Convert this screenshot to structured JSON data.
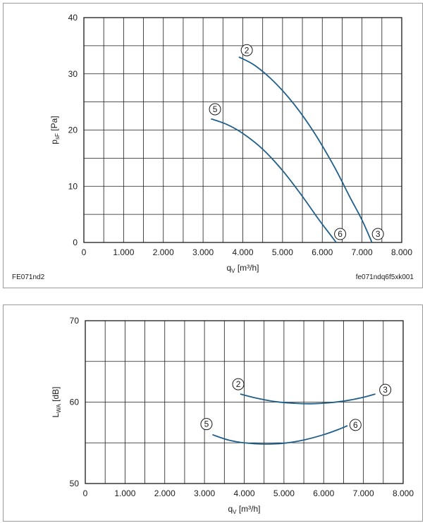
{
  "colors": {
    "curve": "#1f5f8b",
    "grid": "#1a1a1a",
    "panel_border": "#9a9a9a"
  },
  "chart_data": [
    {
      "type": "line",
      "title": "",
      "xlabel": {
        "main": "q",
        "sub": "V",
        "unit": "[m³/h]"
      },
      "ylabel": {
        "main": "p",
        "sub": "sF",
        "unit": "[Pa]"
      },
      "xlim": [
        0,
        8000
      ],
      "ylim": [
        0,
        40
      ],
      "x_ticks": [
        0,
        1000,
        2000,
        3000,
        4000,
        5000,
        6000,
        7000,
        8000
      ],
      "x_tick_labels": [
        "0",
        "1.000",
        "2.000",
        "3.000",
        "4.000",
        "5.000",
        "6.000",
        "7.000",
        "8.000"
      ],
      "y_ticks": [
        0,
        10,
        20,
        30,
        40
      ],
      "y_tick_labels": [
        "0",
        "10",
        "20",
        "30",
        "40"
      ],
      "grid": true,
      "x_grid_step": 500,
      "y_grid_step": 5,
      "series": [
        {
          "name": "2-3",
          "x": [
            3900,
            4300,
            4800,
            5300,
            5800,
            6300,
            6700,
            7000,
            7250
          ],
          "y": [
            33,
            31.5,
            28.5,
            24.5,
            19.5,
            13.5,
            8,
            4,
            0
          ]
        },
        {
          "name": "5-6",
          "x": [
            3200,
            3600,
            4000,
            4500,
            5000,
            5500,
            5900,
            6200,
            6350
          ],
          "y": [
            22,
            21,
            19.4,
            16.6,
            12.8,
            8.2,
            4.2,
            1.4,
            0
          ]
        }
      ],
      "markers": [
        {
          "label": "2",
          "x": 4100,
          "y": 34.2
        },
        {
          "label": "5",
          "x": 3300,
          "y": 23.7
        },
        {
          "label": "6",
          "x": 6450,
          "y": 1.5
        },
        {
          "label": "3",
          "x": 7400,
          "y": 1.5
        }
      ],
      "codes": {
        "left": "FE071nd2",
        "right": "fe071ndq6f5xk001"
      }
    },
    {
      "type": "line",
      "title": "",
      "xlabel": {
        "main": "q",
        "sub": "V",
        "unit": "[m³/h]"
      },
      "ylabel": {
        "main": "L",
        "sub": "WA",
        "unit": "[dB]"
      },
      "xlim": [
        0,
        8000
      ],
      "ylim": [
        50,
        70
      ],
      "x_ticks": [
        0,
        1000,
        2000,
        3000,
        4000,
        5000,
        6000,
        7000,
        8000
      ],
      "x_tick_labels": [
        "0",
        "1.000",
        "2.000",
        "3.000",
        "4.000",
        "5.000",
        "6.000",
        "7.000",
        "8.000"
      ],
      "y_ticks": [
        50,
        60,
        70
      ],
      "y_tick_labels": [
        "50",
        "60",
        "70"
      ],
      "grid": true,
      "x_grid_step": 500,
      "y_grid_step": 5,
      "series": [
        {
          "name": "2-3",
          "x": [
            3900,
            4300,
            4800,
            5300,
            5700,
            6100,
            6600,
            7000,
            7300
          ],
          "y": [
            61,
            60.5,
            60.05,
            59.85,
            59.8,
            59.9,
            60.2,
            60.6,
            61
          ]
        },
        {
          "name": "5-6",
          "x": [
            3200,
            3600,
            4000,
            4500,
            5000,
            5500,
            6000,
            6350,
            6600
          ],
          "y": [
            56,
            55.35,
            55,
            54.85,
            54.95,
            55.35,
            56,
            56.6,
            57.1
          ]
        }
      ],
      "markers": [
        {
          "label": "2",
          "x": 3850,
          "y": 62.2
        },
        {
          "label": "3",
          "x": 7550,
          "y": 61.5
        },
        {
          "label": "5",
          "x": 3050,
          "y": 57.3
        },
        {
          "label": "6",
          "x": 6800,
          "y": 57.2
        }
      ]
    }
  ]
}
